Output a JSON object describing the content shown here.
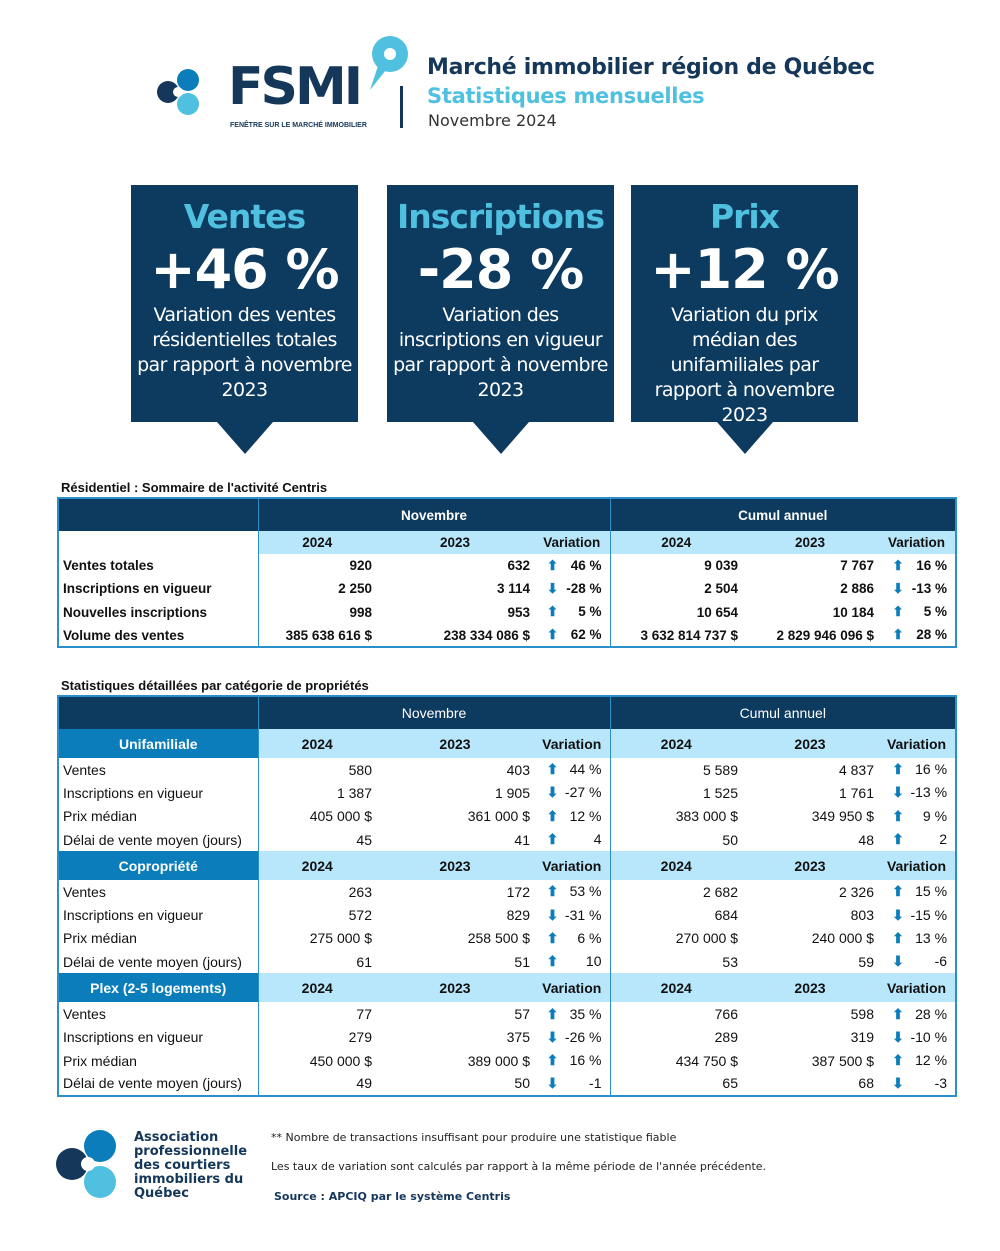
{
  "header": {
    "logo_text": "FSMI",
    "logo_sub": "FENÊTRE SUR LE MARCHÉ IMMOBILIER",
    "title": "Marché immobilier région de Québec",
    "subtitle": "Statistiques mensuelles",
    "period": "Novembre 2024"
  },
  "kpis": [
    {
      "title": "Ventes",
      "value": "+46 %",
      "desc": "Variation des ventes résidentielles totales par rapport à novembre 2023"
    },
    {
      "title": "Inscriptions",
      "value": "-28 %",
      "desc": "Variation des inscriptions en vigueur par rapport à novembre 2023"
    },
    {
      "title": "Prix",
      "value": "+12 %",
      "desc": "Variation du prix médian des unifamiliales par rapport à novembre 2023"
    }
  ],
  "summary": {
    "title": "Résidentiel : Sommaire de l'activité Centris",
    "groups": [
      "Novembre",
      "Cumul annuel"
    ],
    "cols": [
      "2024",
      "2023",
      "Variation",
      "2024",
      "2023",
      "Variation"
    ],
    "rows": [
      [
        "Ventes totales",
        "920",
        "632",
        "up",
        "46 %",
        "9 039",
        "7 767",
        "up",
        "16 %"
      ],
      [
        "Inscriptions en vigueur",
        "2 250",
        "3 114",
        "down",
        "-28 %",
        "2 504",
        "2 886",
        "down",
        "-13 %"
      ],
      [
        "Nouvelles inscriptions",
        "998",
        "953",
        "up",
        "5 %",
        "10 654",
        "10 184",
        "up",
        "5 %"
      ],
      [
        "Volume des ventes",
        "385 638 616  $",
        "238 334 086  $",
        "up",
        "62 %",
        "3 632 814 737  $",
        "2 829 946 096  $",
        "up",
        "28 %"
      ]
    ]
  },
  "details": {
    "title": "Statistiques détaillées par catégorie de propriétés",
    "groups": [
      "Novembre",
      "Cumul annuel"
    ],
    "cols": [
      "2024",
      "2023",
      "Variation",
      "2024",
      "2023",
      "Variation"
    ],
    "categories": [
      {
        "name": "Unifamiliale",
        "rows": [
          [
            "Ventes",
            "580",
            "403",
            "up",
            "44 %",
            "5 589",
            "4 837",
            "up",
            "16 %"
          ],
          [
            "Inscriptions en vigueur",
            "1 387",
            "1 905",
            "down",
            "-27 %",
            "1 525",
            "1 761",
            "down",
            "-13 %"
          ],
          [
            "Prix médian",
            "405 000 $",
            "361 000 $",
            "up",
            "12 %",
            "383 000 $",
            "349 950 $",
            "up",
            "9 %"
          ],
          [
            "Délai de vente moyen (jours)",
            "45",
            "41",
            "up",
            "4",
            "50",
            "48",
            "up",
            "2"
          ]
        ]
      },
      {
        "name": "Copropriété",
        "rows": [
          [
            "Ventes",
            "263",
            "172",
            "up",
            "53 %",
            "2 682",
            "2 326",
            "up",
            "15 %"
          ],
          [
            "Inscriptions en vigueur",
            "572",
            "829",
            "down",
            "-31 %",
            "684",
            "803",
            "down",
            "-15 %"
          ],
          [
            "Prix médian",
            "275 000 $",
            "258 500 $",
            "up",
            "6 %",
            "270 000 $",
            "240 000 $",
            "up",
            "13 %"
          ],
          [
            "Délai de vente moyen (jours)",
            "61",
            "51",
            "up",
            "10",
            "53",
            "59",
            "down",
            "-6"
          ]
        ]
      },
      {
        "name": "Plex (2-5 logements)",
        "rows": [
          [
            "Ventes",
            "77",
            "57",
            "up",
            "35 %",
            "766",
            "598",
            "up",
            "28 %"
          ],
          [
            "Inscriptions en vigueur",
            "279",
            "375",
            "down",
            "-26 %",
            "289",
            "319",
            "down",
            "-10 %"
          ],
          [
            "Prix médian",
            "450 000 $",
            "389 000 $",
            "up",
            "16 %",
            "434 750 $",
            "387 500 $",
            "up",
            "12 %"
          ],
          [
            "Délai de vente moyen (jours)",
            "49",
            "50",
            "down",
            "-1",
            "65",
            "68",
            "down",
            "-3"
          ]
        ]
      }
    ]
  },
  "footer": {
    "association": "Association professionnelle des courtiers immobiliers du Québec",
    "note1": "** Nombre de transactions insuffisant pour produire une statistique fiable",
    "note2": "Les taux de variation sont calculés par rapport à la même période de l'année précédente.",
    "source": "Source : APCIQ par le système Centris"
  },
  "colors": {
    "navy": "#0d3a5f",
    "cyan": "#4fc0df",
    "category": "#0a7dba",
    "subheader": "#b8e6fa"
  }
}
